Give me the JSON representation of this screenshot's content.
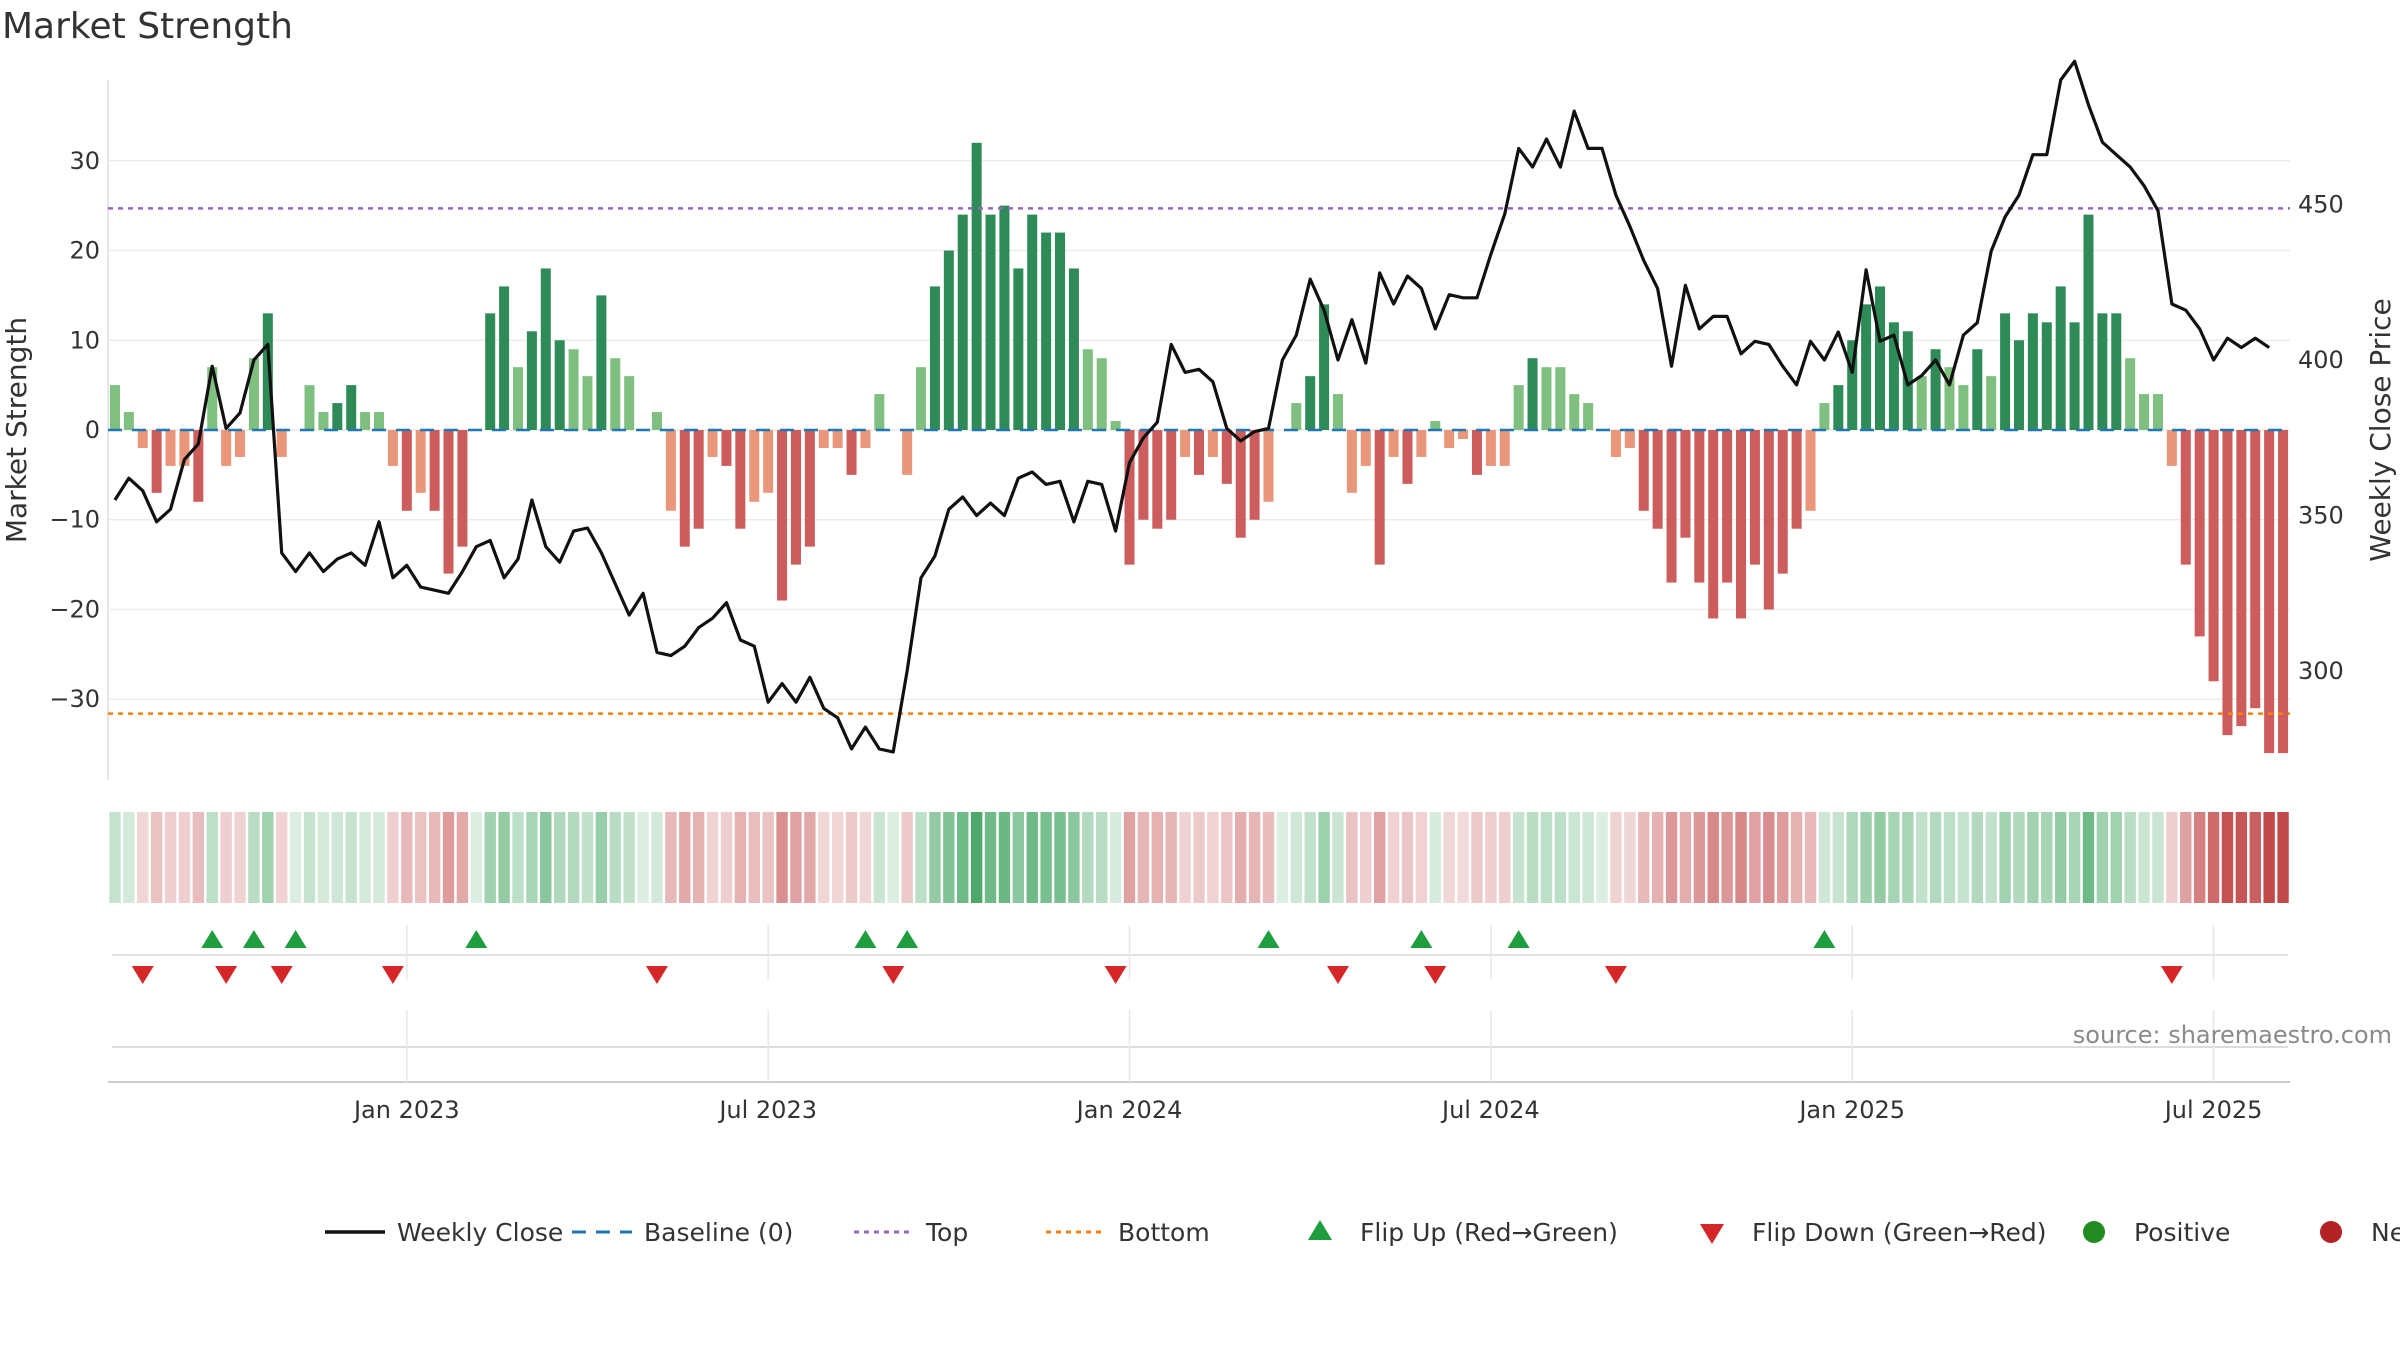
{
  "title": "Market Strength",
  "source": "source: sharemaestro.com",
  "chart_data": {
    "type": "bar",
    "title": "Market Strength",
    "ylabel_left": "Market Strength",
    "ylabel_right": "Weekly Close Price",
    "ylim_left": [
      -39,
      39
    ],
    "ylim_right": [
      265,
      490
    ],
    "yticks_left": [
      30,
      20,
      10,
      0,
      -10,
      -20,
      -30
    ],
    "ytick_labels_left": [
      "30",
      "20",
      "10",
      "0",
      "−10",
      "−20",
      "−30"
    ],
    "yticks_right": [
      450,
      400,
      350,
      300
    ],
    "top_level": 24.7,
    "bottom_level": -31.6,
    "x_start": "2022-08-08",
    "x_end": "2025-10-06",
    "x_tick_labels": [
      "Jan 2023",
      "Jul 2023",
      "Jan 2024",
      "Jul 2024",
      "Jan 2025",
      "Jul 2025"
    ],
    "x_tick_positions_week": [
      21,
      47,
      73,
      99,
      125,
      151
    ],
    "strength_values": [
      5,
      2,
      -2,
      -7,
      -4,
      -4,
      -8,
      7,
      -4,
      -3,
      8,
      13,
      -3,
      0,
      5,
      2,
      3,
      5,
      2,
      2,
      -4,
      -9,
      -7,
      -9,
      -16,
      -13,
      0,
      13,
      16,
      7,
      11,
      18,
      10,
      9,
      6,
      15,
      8,
      6,
      0,
      2,
      -9,
      -13,
      -11,
      -3,
      -4,
      -11,
      -8,
      -7,
      -19,
      -15,
      -13,
      -2,
      -2,
      -5,
      -2,
      4,
      0,
      -5,
      7,
      16,
      20,
      24,
      32,
      24,
      25,
      18,
      24,
      22,
      22,
      18,
      9,
      8,
      1,
      -15,
      -10,
      -11,
      -10,
      -3,
      -5,
      -3,
      -6,
      -12,
      -10,
      -8,
      0,
      3,
      6,
      14,
      4,
      -7,
      -4,
      -15,
      -3,
      -6,
      -3,
      1,
      -2,
      -1,
      -5,
      -4,
      -4,
      5,
      8,
      7,
      7,
      4,
      3,
      0,
      -3,
      -2,
      -9,
      -11,
      -17,
      -12,
      -17,
      -21,
      -17,
      -21,
      -15,
      -20,
      -16,
      -11,
      -9,
      3,
      5,
      10,
      14,
      16,
      12,
      11,
      6,
      9,
      7,
      5,
      9,
      6,
      13,
      10,
      13,
      12,
      16,
      12,
      24,
      13,
      13,
      8,
      4,
      4,
      -4,
      -15,
      -23,
      -28,
      -34,
      -33,
      -31,
      -36,
      -36
    ],
    "weekly_close": [
      355,
      362,
      358,
      348,
      352,
      368,
      373,
      398,
      378,
      383,
      400,
      405,
      338,
      332,
      338,
      332,
      336,
      338,
      334,
      348,
      330,
      334,
      327,
      326,
      325,
      332,
      340,
      342,
      330,
      336,
      355,
      340,
      335,
      345,
      346,
      338,
      328,
      318,
      325,
      306,
      305,
      308,
      314,
      317,
      322,
      310,
      308,
      290,
      296,
      290,
      298,
      288,
      285,
      275,
      282,
      275,
      274,
      300,
      330,
      337,
      352,
      356,
      350,
      354,
      350,
      362,
      364,
      360,
      361,
      348,
      361,
      360,
      345,
      367,
      375,
      380,
      405,
      396,
      397,
      393,
      378,
      374,
      377,
      378,
      400,
      408,
      426,
      416,
      400,
      413,
      399,
      428,
      418,
      427,
      423,
      410,
      421,
      420,
      420,
      434,
      447,
      468,
      462,
      471,
      462,
      480,
      468,
      468,
      453,
      443,
      432,
      423,
      398,
      424,
      410,
      414,
      414,
      402,
      406,
      405,
      398,
      392,
      406,
      400,
      409,
      396,
      429,
      406,
      408,
      392,
      395,
      400,
      392,
      408,
      412,
      435,
      446,
      453,
      466,
      466,
      490,
      496,
      482,
      470,
      466,
      462,
      456,
      448,
      418,
      416,
      410,
      400,
      407,
      404,
      407,
      404
    ],
    "flip_up_weeks": [
      7,
      10,
      13,
      26,
      54,
      57,
      83,
      94,
      101,
      123
    ],
    "flip_down_weeks": [
      2,
      8,
      12,
      20,
      39,
      56,
      72,
      88,
      95,
      108,
      148
    ],
    "legend": [
      "Weekly Close",
      "Baseline (0)",
      "Top",
      "Bottom",
      "Flip Up (Red→Green)",
      "Flip Down (Green→Red)",
      "Positive",
      "Negative"
    ]
  },
  "colors": {
    "positive_dark": "#2e8b57",
    "positive_light": "#7fbf7f",
    "negative_dark": "#cd5c5c",
    "negative_light": "#e9967a",
    "line": "#111111",
    "baseline": "#1f77b4",
    "top": "#9467bd",
    "bottom": "#ff7f0e",
    "flip_up": "#1e9e3e",
    "flip_down": "#d62728",
    "positive_dot": "#228b22",
    "negative_dot": "#b22222"
  }
}
